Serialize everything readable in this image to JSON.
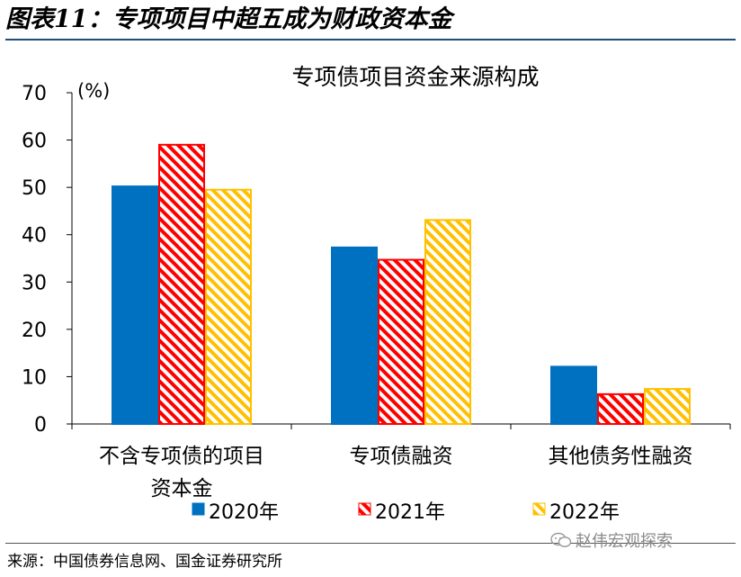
{
  "figure_title": "图表11：专项项目中超五成为财政资本金",
  "source": "来源：中国债券信息网、国金证券研究所",
  "watermark": "赵伟宏观探索",
  "watermark_icon": "wechat-icon",
  "colors": {
    "s2020": "#0070c0",
    "s2021": "#ff0000",
    "s2022": "#ffc000",
    "title_rule": "#1f4e79"
  },
  "chart_data": {
    "type": "bar",
    "title": "专项债项目资金来源构成",
    "ylabel": "(%)",
    "xlabel": "",
    "ylim": [
      0,
      70
    ],
    "yticks": [
      0,
      10,
      20,
      30,
      40,
      50,
      60,
      70
    ],
    "grid": false,
    "legend": "bottom",
    "categories": [
      [
        "不含专项债的项目",
        "资本金"
      ],
      [
        "专项债融资"
      ],
      [
        "其他债务性融资"
      ]
    ],
    "series": [
      {
        "name": "2020年",
        "values": [
          50.2,
          37.3,
          12.1
        ],
        "style": "solid"
      },
      {
        "name": "2021年",
        "values": [
          59.0,
          34.7,
          6.3
        ],
        "style": "hatched"
      },
      {
        "name": "2022年",
        "values": [
          49.5,
          43.1,
          7.4
        ],
        "style": "hatched"
      }
    ]
  }
}
